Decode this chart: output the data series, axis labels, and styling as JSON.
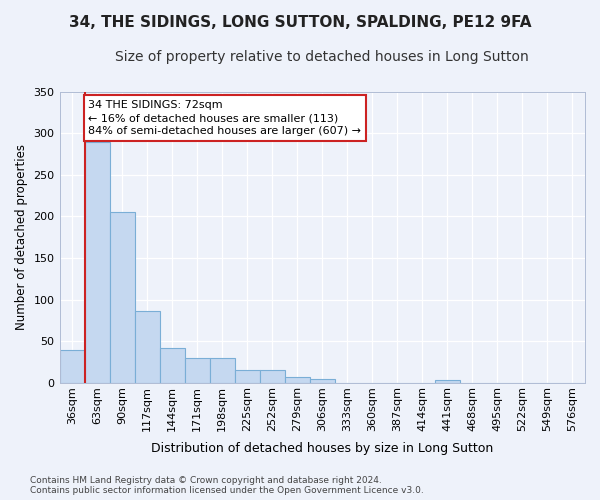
{
  "title1": "34, THE SIDINGS, LONG SUTTON, SPALDING, PE12 9FA",
  "title2": "Size of property relative to detached houses in Long Sutton",
  "xlabel": "Distribution of detached houses by size in Long Sutton",
  "ylabel": "Number of detached properties",
  "categories": [
    "36sqm",
    "63sqm",
    "90sqm",
    "117sqm",
    "144sqm",
    "171sqm",
    "198sqm",
    "225sqm",
    "252sqm",
    "279sqm",
    "306sqm",
    "333sqm",
    "360sqm",
    "387sqm",
    "414sqm",
    "441sqm",
    "468sqm",
    "495sqm",
    "522sqm",
    "549sqm",
    "576sqm"
  ],
  "values": [
    40,
    290,
    205,
    87,
    42,
    30,
    30,
    15,
    15,
    7,
    5,
    0,
    0,
    0,
    0,
    3,
    0,
    0,
    0,
    0,
    0
  ],
  "bar_color": "#c5d8f0",
  "bar_edge_color": "#7aaed6",
  "highlight_color": "#cc2222",
  "annotation_text": "34 THE SIDINGS: 72sqm\n← 16% of detached houses are smaller (113)\n84% of semi-detached houses are larger (607) →",
  "annotation_box_color": "#ffffff",
  "annotation_box_edge_color": "#cc2222",
  "ylim": [
    0,
    350
  ],
  "yticks": [
    0,
    50,
    100,
    150,
    200,
    250,
    300,
    350
  ],
  "background_color": "#eef2fa",
  "grid_color": "#ffffff",
  "footer": "Contains HM Land Registry data © Crown copyright and database right 2024.\nContains public sector information licensed under the Open Government Licence v3.0.",
  "title1_fontsize": 11,
  "title2_fontsize": 10,
  "tick_fontsize": 8,
  "ylabel_fontsize": 8.5,
  "xlabel_fontsize": 9,
  "footer_fontsize": 6.5
}
